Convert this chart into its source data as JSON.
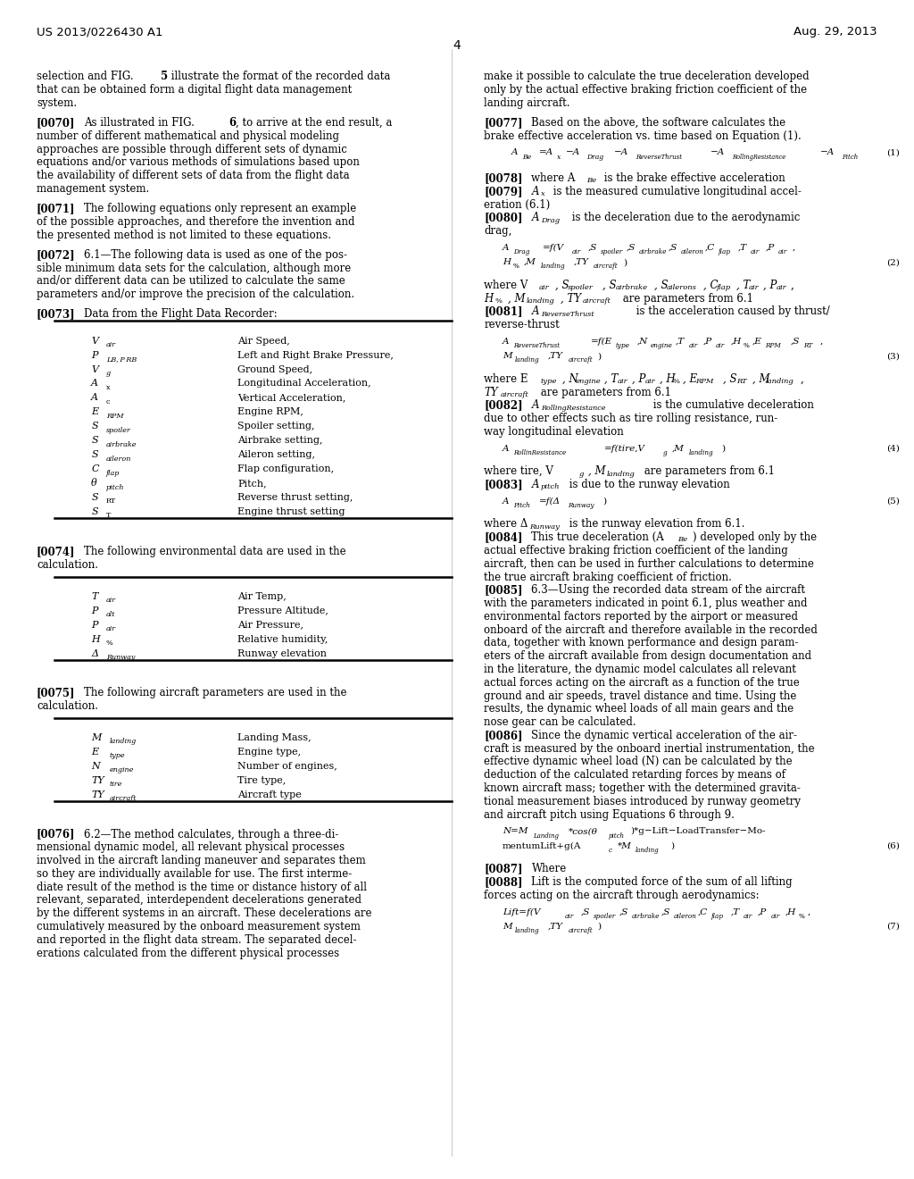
{
  "header_left": "US 2013/0226430 A1",
  "header_right": "Aug. 29, 2013",
  "page_number": "4",
  "bg_color": "#ffffff"
}
